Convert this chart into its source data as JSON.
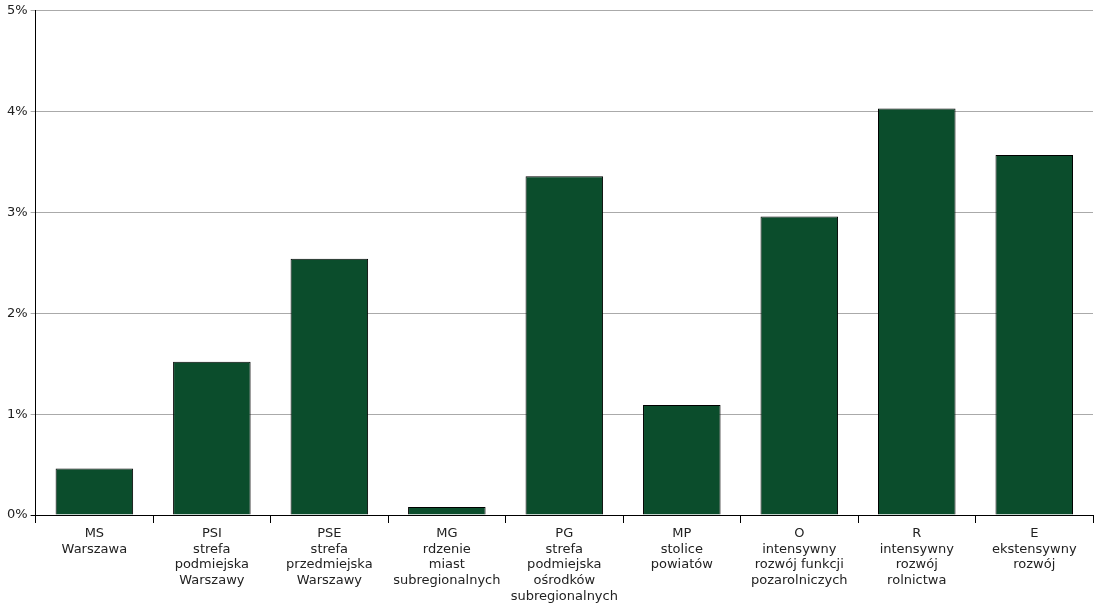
{
  "chart_data": {
    "type": "bar",
    "categories": [
      "MS\nWarszawa",
      "PSI\nstrefa\npodmiejska\nWarszawy",
      "PSE\nstrefa\nprzedmiejska\nWarszawy",
      "MG\nrdzenie\nmiast\nsubregionalnych",
      "PG\nstrefa\npodmiejska\nośrodków\nsubregionalnych",
      "MP\nstolice\npowiatów",
      "O\nintensywny\nrozwój funkcji\npozarolniczych",
      "R\nintensywny\nrozwój\nrolnictwa",
      "E\nekstensywny\nrozwój"
    ],
    "values": [
      0.46,
      1.52,
      2.54,
      0.08,
      3.36,
      1.09,
      2.96,
      4.03,
      3.57
    ],
    "color": "#0b4d2c",
    "ylim": [
      0,
      5
    ],
    "yticks": [
      {
        "value": 0,
        "label": "0%"
      },
      {
        "value": 1,
        "label": "1%"
      },
      {
        "value": 2,
        "label": "2%"
      },
      {
        "value": 3,
        "label": "3%"
      },
      {
        "value": 4,
        "label": "4%"
      },
      {
        "value": 5,
        "label": "5%"
      }
    ],
    "grid": "y"
  }
}
